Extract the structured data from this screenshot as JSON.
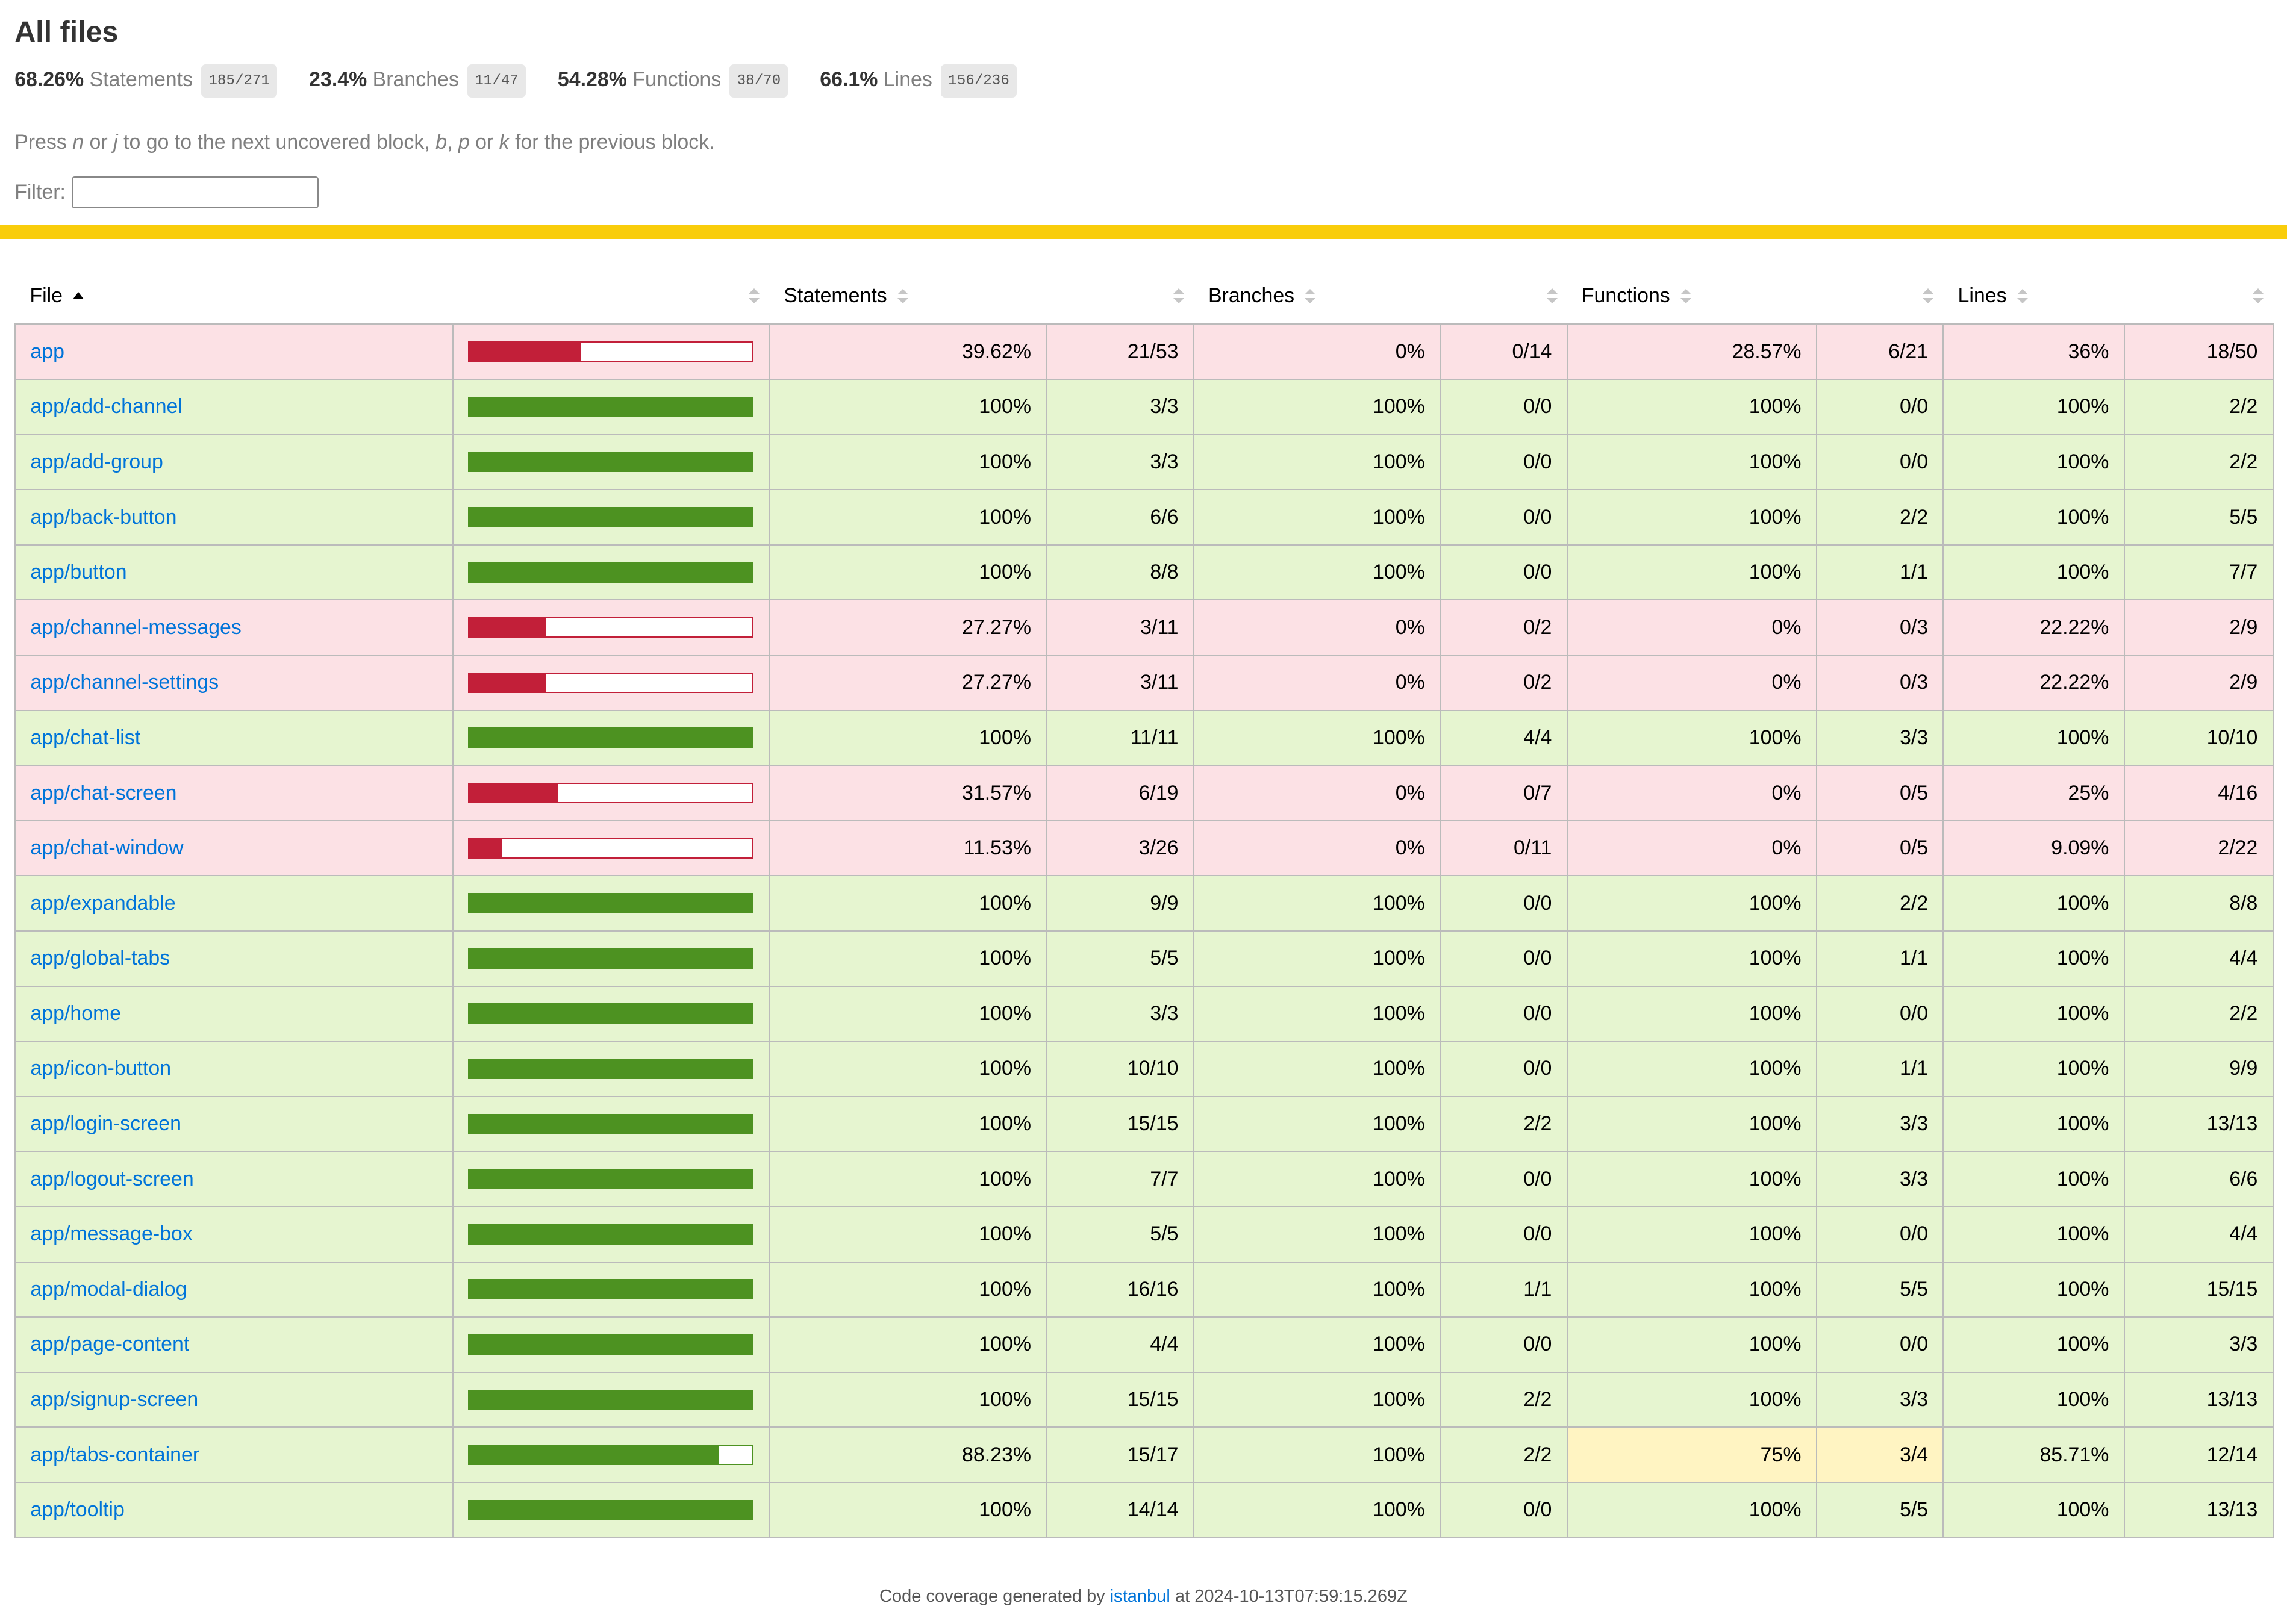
{
  "page_title": "All files",
  "summary": [
    {
      "pct": "68.26%",
      "label": "Statements",
      "fraction": "185/271"
    },
    {
      "pct": "23.4%",
      "label": "Branches",
      "fraction": "11/47"
    },
    {
      "pct": "54.28%",
      "label": "Functions",
      "fraction": "38/70"
    },
    {
      "pct": "66.1%",
      "label": "Lines",
      "fraction": "156/236"
    }
  ],
  "hint": {
    "pre": "Press ",
    "k1": "n",
    "or1": " or ",
    "k2": "j",
    "mid": " to go to the next uncovered block, ",
    "k3": "b",
    "comma": ", ",
    "k4": "p",
    "or2": " or ",
    "k5": "k",
    "post": " for the previous block."
  },
  "filter": {
    "label": "Filter:",
    "value": ""
  },
  "table": {
    "headers": {
      "file": "File",
      "statements": "Statements",
      "branches": "Branches",
      "functions": "Functions",
      "lines": "Lines"
    },
    "rows": [
      {
        "file": "app",
        "level": "low",
        "coverage": 0.3962,
        "stmt_pct": "39.62%",
        "stmt_frac": "21/53",
        "br_pct": "0%",
        "br_frac": "0/14",
        "fn_pct": "28.57%",
        "fn_frac": "6/21",
        "ln_pct": "36%",
        "ln_frac": "18/50",
        "fn_medium": false
      },
      {
        "file": "app/add-channel",
        "level": "high",
        "coverage": 1,
        "stmt_pct": "100%",
        "stmt_frac": "3/3",
        "br_pct": "100%",
        "br_frac": "0/0",
        "fn_pct": "100%",
        "fn_frac": "0/0",
        "ln_pct": "100%",
        "ln_frac": "2/2",
        "fn_medium": false
      },
      {
        "file": "app/add-group",
        "level": "high",
        "coverage": 1,
        "stmt_pct": "100%",
        "stmt_frac": "3/3",
        "br_pct": "100%",
        "br_frac": "0/0",
        "fn_pct": "100%",
        "fn_frac": "0/0",
        "ln_pct": "100%",
        "ln_frac": "2/2",
        "fn_medium": false
      },
      {
        "file": "app/back-button",
        "level": "high",
        "coverage": 1,
        "stmt_pct": "100%",
        "stmt_frac": "6/6",
        "br_pct": "100%",
        "br_frac": "0/0",
        "fn_pct": "100%",
        "fn_frac": "2/2",
        "ln_pct": "100%",
        "ln_frac": "5/5",
        "fn_medium": false
      },
      {
        "file": "app/button",
        "level": "high",
        "coverage": 1,
        "stmt_pct": "100%",
        "stmt_frac": "8/8",
        "br_pct": "100%",
        "br_frac": "0/0",
        "fn_pct": "100%",
        "fn_frac": "1/1",
        "ln_pct": "100%",
        "ln_frac": "7/7",
        "fn_medium": false
      },
      {
        "file": "app/channel-messages",
        "level": "low",
        "coverage": 0.2727,
        "stmt_pct": "27.27%",
        "stmt_frac": "3/11",
        "br_pct": "0%",
        "br_frac": "0/2",
        "fn_pct": "0%",
        "fn_frac": "0/3",
        "ln_pct": "22.22%",
        "ln_frac": "2/9",
        "fn_medium": false
      },
      {
        "file": "app/channel-settings",
        "level": "low",
        "coverage": 0.2727,
        "stmt_pct": "27.27%",
        "stmt_frac": "3/11",
        "br_pct": "0%",
        "br_frac": "0/2",
        "fn_pct": "0%",
        "fn_frac": "0/3",
        "ln_pct": "22.22%",
        "ln_frac": "2/9",
        "fn_medium": false
      },
      {
        "file": "app/chat-list",
        "level": "high",
        "coverage": 1,
        "stmt_pct": "100%",
        "stmt_frac": "11/11",
        "br_pct": "100%",
        "br_frac": "4/4",
        "fn_pct": "100%",
        "fn_frac": "3/3",
        "ln_pct": "100%",
        "ln_frac": "10/10",
        "fn_medium": false
      },
      {
        "file": "app/chat-screen",
        "level": "low",
        "coverage": 0.3157,
        "stmt_pct": "31.57%",
        "stmt_frac": "6/19",
        "br_pct": "0%",
        "br_frac": "0/7",
        "fn_pct": "0%",
        "fn_frac": "0/5",
        "ln_pct": "25%",
        "ln_frac": "4/16",
        "fn_medium": false
      },
      {
        "file": "app/chat-window",
        "level": "low",
        "coverage": 0.1153,
        "stmt_pct": "11.53%",
        "stmt_frac": "3/26",
        "br_pct": "0%",
        "br_frac": "0/11",
        "fn_pct": "0%",
        "fn_frac": "0/5",
        "ln_pct": "9.09%",
        "ln_frac": "2/22",
        "fn_medium": false
      },
      {
        "file": "app/expandable",
        "level": "high",
        "coverage": 1,
        "stmt_pct": "100%",
        "stmt_frac": "9/9",
        "br_pct": "100%",
        "br_frac": "0/0",
        "fn_pct": "100%",
        "fn_frac": "2/2",
        "ln_pct": "100%",
        "ln_frac": "8/8",
        "fn_medium": false
      },
      {
        "file": "app/global-tabs",
        "level": "high",
        "coverage": 1,
        "stmt_pct": "100%",
        "stmt_frac": "5/5",
        "br_pct": "100%",
        "br_frac": "0/0",
        "fn_pct": "100%",
        "fn_frac": "1/1",
        "ln_pct": "100%",
        "ln_frac": "4/4",
        "fn_medium": false
      },
      {
        "file": "app/home",
        "level": "high",
        "coverage": 1,
        "stmt_pct": "100%",
        "stmt_frac": "3/3",
        "br_pct": "100%",
        "br_frac": "0/0",
        "fn_pct": "100%",
        "fn_frac": "0/0",
        "ln_pct": "100%",
        "ln_frac": "2/2",
        "fn_medium": false
      },
      {
        "file": "app/icon-button",
        "level": "high",
        "coverage": 1,
        "stmt_pct": "100%",
        "stmt_frac": "10/10",
        "br_pct": "100%",
        "br_frac": "0/0",
        "fn_pct": "100%",
        "fn_frac": "1/1",
        "ln_pct": "100%",
        "ln_frac": "9/9",
        "fn_medium": false
      },
      {
        "file": "app/login-screen",
        "level": "high",
        "coverage": 1,
        "stmt_pct": "100%",
        "stmt_frac": "15/15",
        "br_pct": "100%",
        "br_frac": "2/2",
        "fn_pct": "100%",
        "fn_frac": "3/3",
        "ln_pct": "100%",
        "ln_frac": "13/13",
        "fn_medium": false
      },
      {
        "file": "app/logout-screen",
        "level": "high",
        "coverage": 1,
        "stmt_pct": "100%",
        "stmt_frac": "7/7",
        "br_pct": "100%",
        "br_frac": "0/0",
        "fn_pct": "100%",
        "fn_frac": "3/3",
        "ln_pct": "100%",
        "ln_frac": "6/6",
        "fn_medium": false
      },
      {
        "file": "app/message-box",
        "level": "high",
        "coverage": 1,
        "stmt_pct": "100%",
        "stmt_frac": "5/5",
        "br_pct": "100%",
        "br_frac": "0/0",
        "fn_pct": "100%",
        "fn_frac": "0/0",
        "ln_pct": "100%",
        "ln_frac": "4/4",
        "fn_medium": false
      },
      {
        "file": "app/modal-dialog",
        "level": "high",
        "coverage": 1,
        "stmt_pct": "100%",
        "stmt_frac": "16/16",
        "br_pct": "100%",
        "br_frac": "1/1",
        "fn_pct": "100%",
        "fn_frac": "5/5",
        "ln_pct": "100%",
        "ln_frac": "15/15",
        "fn_medium": false
      },
      {
        "file": "app/page-content",
        "level": "high",
        "coverage": 1,
        "stmt_pct": "100%",
        "stmt_frac": "4/4",
        "br_pct": "100%",
        "br_frac": "0/0",
        "fn_pct": "100%",
        "fn_frac": "0/0",
        "ln_pct": "100%",
        "ln_frac": "3/3",
        "fn_medium": false
      },
      {
        "file": "app/signup-screen",
        "level": "high",
        "coverage": 1,
        "stmt_pct": "100%",
        "stmt_frac": "15/15",
        "br_pct": "100%",
        "br_frac": "2/2",
        "fn_pct": "100%",
        "fn_frac": "3/3",
        "ln_pct": "100%",
        "ln_frac": "13/13",
        "fn_medium": false
      },
      {
        "file": "app/tabs-container",
        "level": "high",
        "coverage": 0.8823,
        "stmt_pct": "88.23%",
        "stmt_frac": "15/17",
        "br_pct": "100%",
        "br_frac": "2/2",
        "fn_pct": "75%",
        "fn_frac": "3/4",
        "ln_pct": "85.71%",
        "ln_frac": "12/14",
        "fn_medium": true
      },
      {
        "file": "app/tooltip",
        "level": "high",
        "coverage": 1,
        "stmt_pct": "100%",
        "stmt_frac": "14/14",
        "br_pct": "100%",
        "br_frac": "0/0",
        "fn_pct": "100%",
        "fn_frac": "5/5",
        "ln_pct": "100%",
        "ln_frac": "13/13",
        "fn_medium": false
      }
    ]
  },
  "footer": {
    "pre": "Code coverage generated by ",
    "link": "istanbul",
    "post": " at 2024-10-13T07:59:15.269Z"
  },
  "colors": {
    "low": "#c21f39",
    "high": "#4d9221",
    "status_line": "#f9cd0b",
    "link": "#0074d9"
  }
}
